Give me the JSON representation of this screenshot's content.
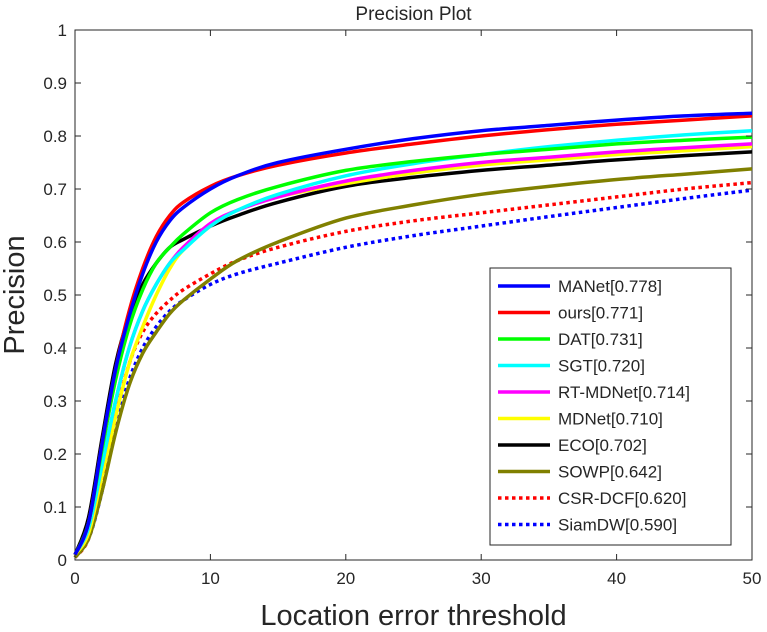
{
  "chart_data": {
    "type": "line",
    "title": "Precision Plot",
    "xlabel": "Location error threshold",
    "ylabel": "Precision",
    "xlim": [
      0,
      50
    ],
    "ylim": [
      0,
      1
    ],
    "xticks": [
      0,
      10,
      20,
      30,
      40,
      50
    ],
    "xtick_labels": [
      "0",
      "10",
      "20",
      "30",
      "40",
      "50"
    ],
    "yticks": [
      0,
      0.1,
      0.2,
      0.3,
      0.4,
      0.5,
      0.6,
      0.7,
      0.8,
      0.9,
      1
    ],
    "ytick_labels": [
      "0",
      "0.1",
      "0.2",
      "0.3",
      "0.4",
      "0.5",
      "0.6",
      "0.7",
      "0.8",
      "0.9",
      "1"
    ],
    "grid": false,
    "legend_position": "bottom-right",
    "x": [
      0,
      1,
      2,
      3,
      4,
      5,
      6,
      7,
      8,
      10,
      12,
      15,
      20,
      25,
      30,
      35,
      40,
      45,
      50
    ],
    "series": [
      {
        "name": "MANet[0.778]",
        "color": "#0000ff",
        "style": "solid",
        "values": [
          0.01,
          0.07,
          0.22,
          0.36,
          0.46,
          0.54,
          0.6,
          0.64,
          0.665,
          0.7,
          0.725,
          0.75,
          0.775,
          0.795,
          0.81,
          0.82,
          0.83,
          0.838,
          0.843
        ]
      },
      {
        "name": "ours[0.771]",
        "color": "#ff0000",
        "style": "solid",
        "values": [
          0.01,
          0.07,
          0.22,
          0.36,
          0.47,
          0.55,
          0.61,
          0.65,
          0.675,
          0.705,
          0.725,
          0.745,
          0.768,
          0.785,
          0.8,
          0.812,
          0.822,
          0.83,
          0.838
        ]
      },
      {
        "name": "DAT[0.731]",
        "color": "#00ff00",
        "style": "solid",
        "values": [
          0.01,
          0.07,
          0.21,
          0.34,
          0.44,
          0.51,
          0.56,
          0.59,
          0.615,
          0.655,
          0.68,
          0.705,
          0.735,
          0.752,
          0.765,
          0.775,
          0.785,
          0.792,
          0.798
        ]
      },
      {
        "name": "SGT[0.720]",
        "color": "#00ffff",
        "style": "solid",
        "values": [
          0.01,
          0.06,
          0.18,
          0.3,
          0.4,
          0.47,
          0.52,
          0.56,
          0.585,
          0.63,
          0.66,
          0.69,
          0.725,
          0.748,
          0.765,
          0.78,
          0.792,
          0.802,
          0.81
        ]
      },
      {
        "name": "RT-MDNet[0.714]",
        "color": "#ff00ff",
        "style": "solid",
        "values": [
          0.01,
          0.06,
          0.18,
          0.3,
          0.4,
          0.47,
          0.52,
          0.56,
          0.59,
          0.635,
          0.66,
          0.685,
          0.715,
          0.735,
          0.75,
          0.76,
          0.77,
          0.778,
          0.785
        ]
      },
      {
        "name": "MDNet[0.710]",
        "color": "#ffff00",
        "style": "solid",
        "values": [
          0.01,
          0.05,
          0.16,
          0.27,
          0.37,
          0.44,
          0.5,
          0.55,
          0.585,
          0.63,
          0.66,
          0.685,
          0.71,
          0.73,
          0.745,
          0.755,
          0.765,
          0.772,
          0.78
        ]
      },
      {
        "name": "ECO[0.702]",
        "color": "#000000",
        "style": "solid",
        "values": [
          0.01,
          0.08,
          0.23,
          0.37,
          0.46,
          0.52,
          0.56,
          0.59,
          0.605,
          0.63,
          0.65,
          0.675,
          0.705,
          0.722,
          0.735,
          0.745,
          0.755,
          0.763,
          0.77
        ]
      },
      {
        "name": "SOWP[0.642]",
        "color": "#808000",
        "style": "solid",
        "values": [
          0.005,
          0.04,
          0.13,
          0.24,
          0.33,
          0.39,
          0.43,
          0.465,
          0.49,
          0.53,
          0.565,
          0.6,
          0.645,
          0.67,
          0.69,
          0.705,
          0.718,
          0.728,
          0.738
        ]
      },
      {
        "name": "CSR-DCF[0.620]",
        "color": "#ff0000",
        "style": "dotted",
        "values": [
          0.005,
          0.04,
          0.14,
          0.27,
          0.37,
          0.43,
          0.465,
          0.49,
          0.51,
          0.54,
          0.565,
          0.59,
          0.62,
          0.64,
          0.655,
          0.67,
          0.685,
          0.7,
          0.712
        ]
      },
      {
        "name": "SiamDW[0.590]",
        "color": "#0000ff",
        "style": "dotted",
        "values": [
          0.005,
          0.04,
          0.13,
          0.25,
          0.34,
          0.4,
          0.44,
          0.47,
          0.49,
          0.52,
          0.54,
          0.56,
          0.59,
          0.612,
          0.63,
          0.648,
          0.665,
          0.682,
          0.698
        ]
      }
    ]
  }
}
